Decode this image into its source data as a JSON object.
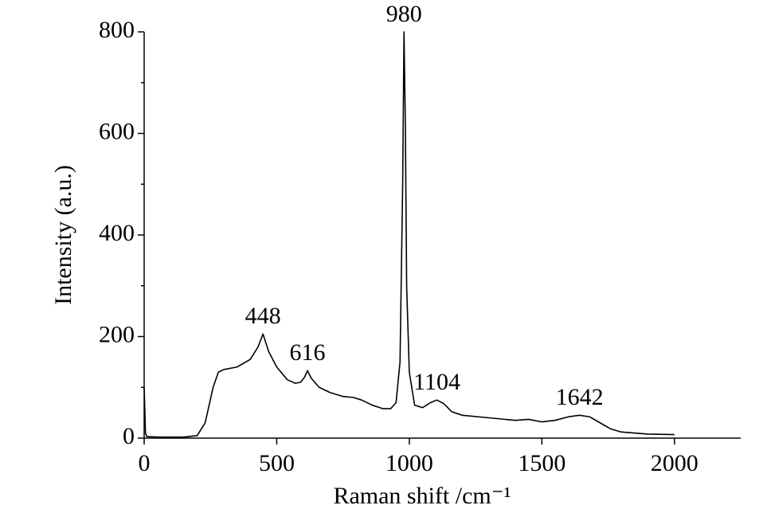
{
  "chart_data": {
    "type": "line",
    "x_label": "Raman shift /cm⁻¹",
    "y_label": "Intensity (a.u.)",
    "xlim": [
      0,
      2250
    ],
    "ylim": [
      0,
      800
    ],
    "xticks": [
      0,
      500,
      1000,
      1500,
      2000
    ],
    "yticks": [
      0,
      200,
      400,
      600,
      800
    ],
    "yminorticks": [
      100,
      300,
      500,
      700
    ],
    "color": "#000000",
    "grid": false,
    "series": [
      {
        "x": [
          0,
          5,
          10,
          50,
          150,
          200,
          230,
          260,
          280,
          300,
          350,
          400,
          430,
          448,
          470,
          500,
          540,
          570,
          590,
          605,
          616,
          630,
          660,
          700,
          750,
          790,
          820,
          860,
          900,
          930,
          950,
          965,
          975,
          980,
          985,
          990,
          1000,
          1020,
          1050,
          1080,
          1104,
          1130,
          1160,
          1200,
          1300,
          1400,
          1450,
          1500,
          1550,
          1600,
          1642,
          1680,
          1720,
          1760,
          1800,
          1900,
          2000
        ],
        "values": [
          100,
          10,
          3,
          2,
          2,
          5,
          30,
          100,
          130,
          135,
          140,
          155,
          180,
          205,
          170,
          140,
          115,
          108,
          110,
          120,
          133,
          118,
          100,
          90,
          82,
          80,
          75,
          65,
          58,
          58,
          70,
          150,
          500,
          800,
          620,
          300,
          130,
          65,
          60,
          70,
          75,
          68,
          52,
          45,
          40,
          35,
          37,
          32,
          35,
          42,
          45,
          42,
          30,
          18,
          12,
          8,
          7
        ]
      }
    ],
    "annotations": [
      {
        "text": "448",
        "x": 448,
        "y": 205
      },
      {
        "text": "616",
        "x": 616,
        "y": 133
      },
      {
        "text": "980",
        "x": 980,
        "y": 800
      },
      {
        "text": "1104",
        "x": 1104,
        "y": 75
      },
      {
        "text": "1642",
        "x": 1642,
        "y": 45
      }
    ]
  }
}
